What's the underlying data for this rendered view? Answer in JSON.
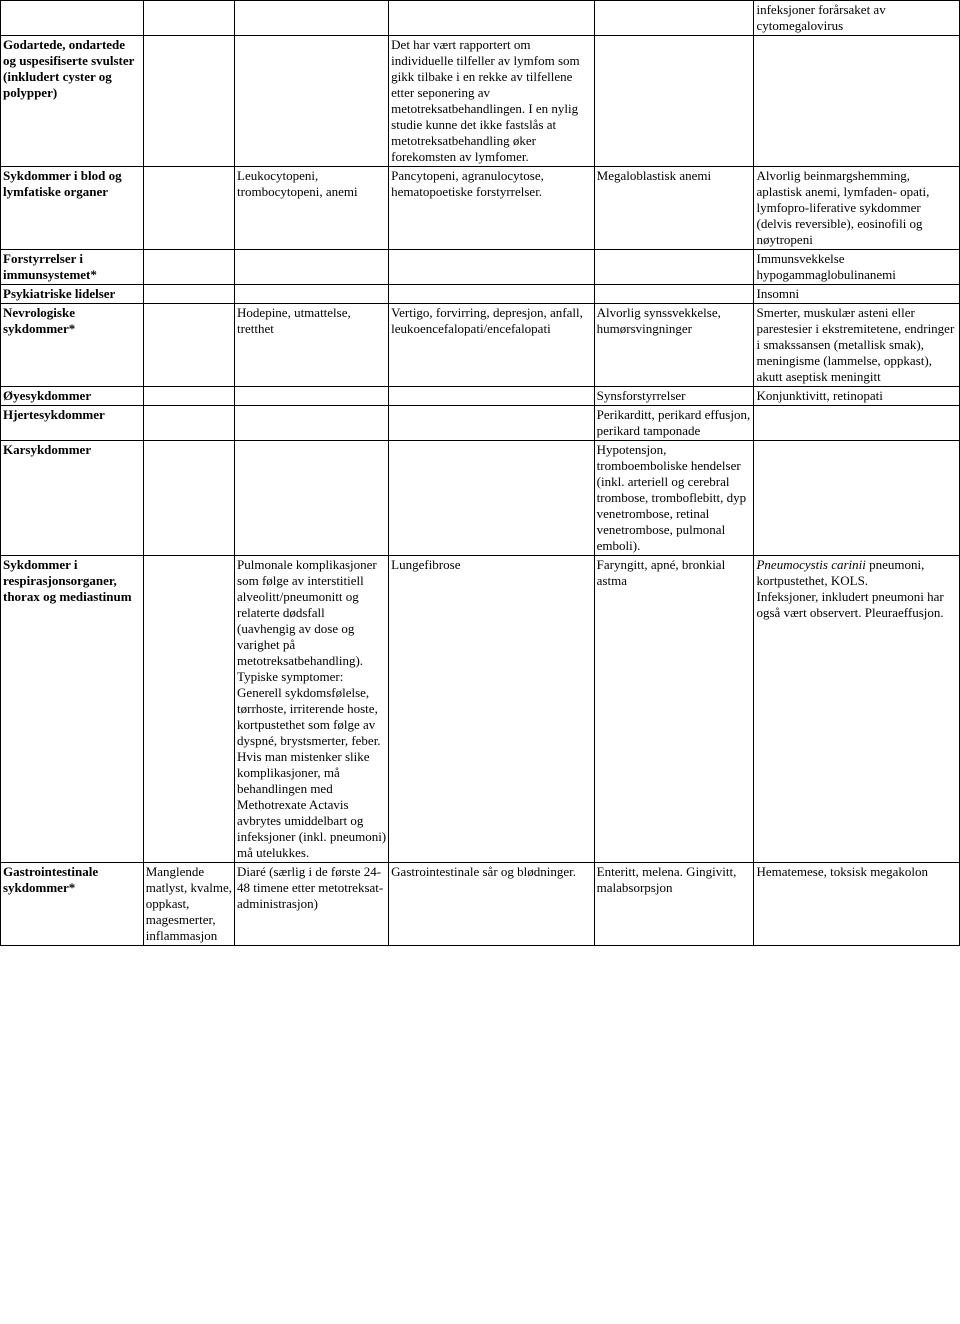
{
  "rows": [
    {
      "c0": "",
      "c1": "",
      "c2": "",
      "c3": "",
      "c4": "",
      "c5": "infeksjoner forårsaket av cytomegalovirus"
    },
    {
      "c0": "Godartede, ondartede og uspesifiserte svulster (inkludert cyster og polypper)",
      "c1": "",
      "c2": "",
      "c3": "Det har vært rapportert om individuelle tilfeller av lymfom som gikk tilbake i en rekke av tilfellene etter seponering av metotreksatbehandlingen. I en nylig studie kunne det ikke fastslås at metotreksatbehandling øker forekomsten av lymfomer.",
      "c4": "",
      "c5": ""
    },
    {
      "c0": "Sykdommer i blod og lymfatiske organer",
      "c1": "",
      "c2": "Leukocytopeni, trombocytopeni, anemi",
      "c3": "Pancytopeni, agranulocytose, hematopoetiske forstyrrelser.",
      "c4": "Megaloblastisk anemi",
      "c5": "Alvorlig beinmargshemming, aplastisk anemi, lymfaden- opati, lymfopro-liferative sykdommer (delvis reversible), eosinofili og nøytropeni"
    },
    {
      "c0": "Forstyrrelser i immunsystemet*",
      "c1": "",
      "c2": "",
      "c3": "",
      "c4": "",
      "c5": "Immunsvekkelse hypogammaglobulinanemi"
    },
    {
      "c0": "Psykiatriske lidelser",
      "c1": "",
      "c2": "",
      "c3": "",
      "c4": "",
      "c5": "Insomni"
    },
    {
      "c0": "Nevrologiske sykdommer*",
      "c1": "",
      "c2": "Hodepine, utmattelse, tretthet",
      "c3": "Vertigo, forvirring, depresjon, anfall, leukoencefalopati/encefalopati",
      "c4": "Alvorlig synssvekkelse, humørsvingninger",
      "c5": "Smerter, muskulær asteni eller parestesier i ekstremitetene, endringer i smakssansen (metallisk smak), meningisme (lammelse, oppkast), akutt aseptisk meningitt"
    },
    {
      "c0": "Øyesykdommer",
      "c1": "",
      "c2": "",
      "c3": "",
      "c4": "Synsforstyrrelser",
      "c5": "Konjunktivitt, retinopati"
    },
    {
      "c0": "Hjertesykdommer",
      "c1": "",
      "c2": "",
      "c3": "",
      "c4": "Perikarditt, perikard effusjon, perikard tamponade",
      "c5": ""
    },
    {
      "c0": "Karsykdommer",
      "c1": "",
      "c2": "",
      "c3": "",
      "c4": "Hypotensjon, tromboemboliske hendelser (inkl. arteriell og cerebral trombose, tromboflebitt, dyp venetrombose, retinal venetrombose, pulmonal emboli).",
      "c5": ""
    },
    {
      "c0": "Sykdommer i respirasjonsorganer, thorax og mediastinum",
      "c1": "",
      "c2": "Pulmonale komplikasjoner som følge av interstitiell alveolitt/pneumonitt og relaterte dødsfall (uavhengig av dose og varighet på metotreksatbehandling). Typiske symptomer: Generell sykdomsfølelse, tørrhoste, irriterende hoste, kortpustethet som følge av dyspné, brystsmerter, feber. Hvis man mistenker slike komplikasjoner, må behandlingen med Methotrexate Actavis avbrytes umiddelbart og infeksjoner (inkl. pneumoni) må utelukkes.",
      "c3": "Lungefibrose",
      "c4": "Faryngitt, apné, bronkial astma",
      "c5_html": "<span style=\"font-style:italic\">Pneumocystis carinii</span> pneumoni, kortpustethet, KOLS.<br>Infeksjoner, inkludert pneumoni har også vært observert. Pleuraeffusjon."
    },
    {
      "c0": "Gastrointestinale sykdommer*",
      "c1": "Manglende matlyst, kvalme, oppkast, magesmerter, inflammasjon",
      "c2": "Diaré (særlig i de første 24-48 timene etter metotreksat-administrasjon)",
      "c3": "Gastrointestinale sår og blødninger.",
      "c4": "Enteritt, melena. Gingivitt, malabsorpsjon",
      "c5": "Hematemese, toksisk megakolon"
    }
  ]
}
